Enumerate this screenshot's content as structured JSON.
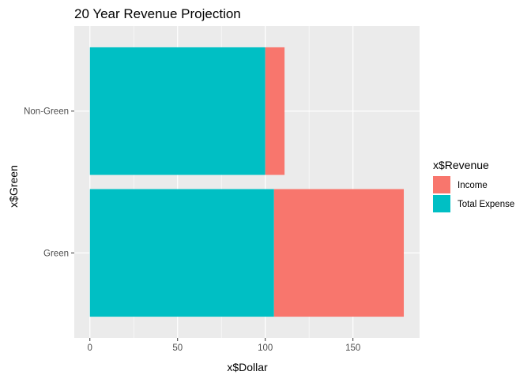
{
  "chart_data": {
    "type": "bar",
    "orientation": "horizontal",
    "stacked": true,
    "title": "20 Year Revenue Projection",
    "xlabel": "x$Dollar",
    "ylabel": "x$Green",
    "categories": [
      "Green",
      "Non-Green"
    ],
    "series": [
      {
        "name": "Total Expense",
        "color": "#00BFC4",
        "values": [
          105,
          100
        ]
      },
      {
        "name": "Income",
        "color": "#F8766D",
        "values": [
          74,
          11
        ]
      }
    ],
    "xlim": [
      -8.9,
      188
    ],
    "x_ticks": [
      0,
      50,
      100,
      150
    ],
    "x_tick_labels": [
      "0",
      "50",
      "100",
      "150"
    ],
    "legend": {
      "title": "x$Revenue",
      "position": "right",
      "items": [
        {
          "label": "Income",
          "color": "#F8766D"
        },
        {
          "label": "Total Expense",
          "color": "#00BFC4"
        }
      ]
    },
    "grid": true,
    "panel_background": "#EBEBEB",
    "grid_color": "#FFFFFF"
  }
}
